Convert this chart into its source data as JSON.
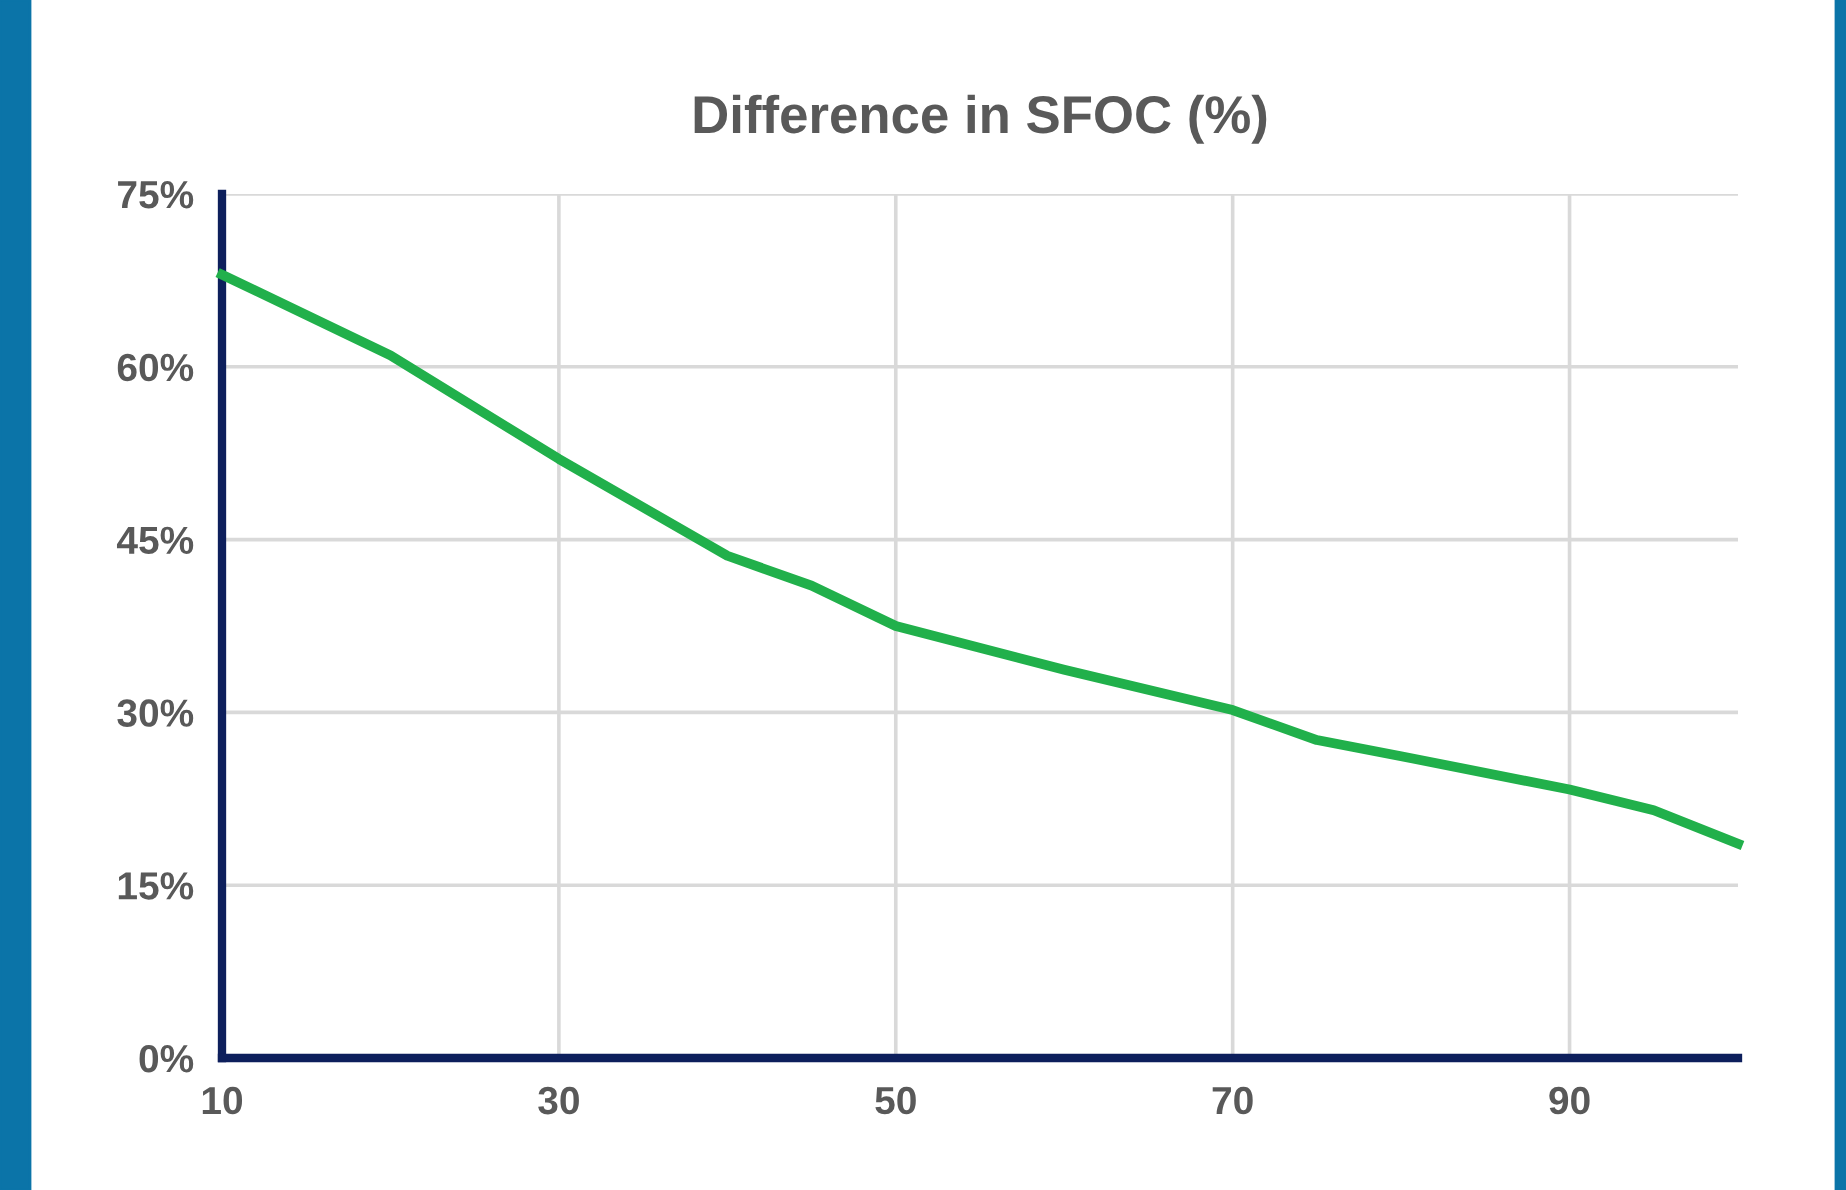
{
  "chart_data": {
    "type": "line",
    "title": "Difference in SFOC (%)",
    "x": [
      10,
      20,
      30,
      40,
      45,
      50,
      60,
      70,
      75,
      80,
      90,
      95,
      100
    ],
    "series": [
      {
        "color": "#21b04b",
        "values": [
          68,
          61,
          52,
          43.6,
          41,
          37.5,
          33.7,
          30.2,
          27.6,
          26.2,
          23.3,
          21.5,
          18.6
        ]
      }
    ],
    "xlim": [
      10,
      100
    ],
    "xticks": [
      10,
      30,
      50,
      70,
      90
    ],
    "ylim": [
      0,
      75
    ],
    "yticks": [
      {
        "value": 0,
        "label": "0%"
      },
      {
        "value": 15,
        "label": "15%"
      },
      {
        "value": 30,
        "label": "30%"
      },
      {
        "value": 45,
        "label": "45%"
      },
      {
        "value": 60,
        "label": "60%"
      },
      {
        "value": 75,
        "label": "75%"
      }
    ],
    "grid": true,
    "marker": "none",
    "line_style": "solid",
    "legend": false
  }
}
